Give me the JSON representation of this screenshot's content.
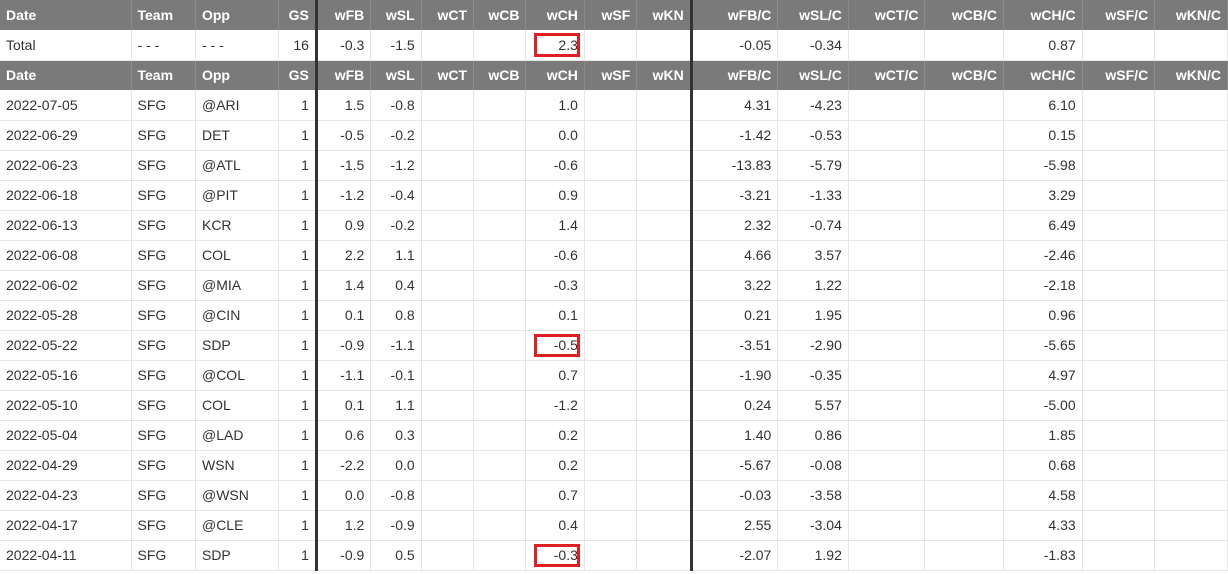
{
  "columns": [
    "Date",
    "Team",
    "Opp",
    "GS",
    "wFB",
    "wSL",
    "wCT",
    "wCB",
    "wCH",
    "wSF",
    "wKN",
    "wFB/C",
    "wSL/C",
    "wCT/C",
    "wCB/C",
    "wCH/C",
    "wSF/C",
    "wKN/C"
  ],
  "total": {
    "label": "Total",
    "team": "- - -",
    "opp": "- - -",
    "gs": "16",
    "wFB": "-0.3",
    "wSL": "-1.5",
    "wCT": "",
    "wCB": "",
    "wCH": "2.3",
    "wSF": "",
    "wKN": "",
    "wFBc": "-0.05",
    "wSLc": "-0.34",
    "wCTc": "",
    "wCBc": "",
    "wCHc": "0.87",
    "wSFc": "",
    "wKNc": ""
  },
  "rows": [
    {
      "date": "2022-07-05",
      "team": "SFG",
      "opp": "@ARI",
      "gs": "1",
      "wFB": "1.5",
      "wSL": "-0.8",
      "wCH": "1.0",
      "wFBc": "4.31",
      "wSLc": "-4.23",
      "wCHc": "6.10"
    },
    {
      "date": "2022-06-29",
      "team": "SFG",
      "opp": "DET",
      "gs": "1",
      "wFB": "-0.5",
      "wSL": "-0.2",
      "wCH": "0.0",
      "wFBc": "-1.42",
      "wSLc": "-0.53",
      "wCHc": "0.15"
    },
    {
      "date": "2022-06-23",
      "team": "SFG",
      "opp": "@ATL",
      "gs": "1",
      "wFB": "-1.5",
      "wSL": "-1.2",
      "wCH": "-0.6",
      "wFBc": "-13.83",
      "wSLc": "-5.79",
      "wCHc": "-5.98"
    },
    {
      "date": "2022-06-18",
      "team": "SFG",
      "opp": "@PIT",
      "gs": "1",
      "wFB": "-1.2",
      "wSL": "-0.4",
      "wCH": "0.9",
      "wFBc": "-3.21",
      "wSLc": "-1.33",
      "wCHc": "3.29"
    },
    {
      "date": "2022-06-13",
      "team": "SFG",
      "opp": "KCR",
      "gs": "1",
      "wFB": "0.9",
      "wSL": "-0.2",
      "wCH": "1.4",
      "wFBc": "2.32",
      "wSLc": "-0.74",
      "wCHc": "6.49"
    },
    {
      "date": "2022-06-08",
      "team": "SFG",
      "opp": "COL",
      "gs": "1",
      "wFB": "2.2",
      "wSL": "1.1",
      "wCH": "-0.6",
      "wFBc": "4.66",
      "wSLc": "3.57",
      "wCHc": "-2.46"
    },
    {
      "date": "2022-06-02",
      "team": "SFG",
      "opp": "@MIA",
      "gs": "1",
      "wFB": "1.4",
      "wSL": "0.4",
      "wCH": "-0.3",
      "wFBc": "3.22",
      "wSLc": "1.22",
      "wCHc": "-2.18"
    },
    {
      "date": "2022-05-28",
      "team": "SFG",
      "opp": "@CIN",
      "gs": "1",
      "wFB": "0.1",
      "wSL": "0.8",
      "wCH": "0.1",
      "wFBc": "0.21",
      "wSLc": "1.95",
      "wCHc": "0.96"
    },
    {
      "date": "2022-05-22",
      "team": "SFG",
      "opp": "SDP",
      "gs": "1",
      "wFB": "-0.9",
      "wSL": "-1.1",
      "wCH": "-0.5",
      "wFBc": "-3.51",
      "wSLc": "-2.90",
      "wCHc": "-5.65",
      "hl": true
    },
    {
      "date": "2022-05-16",
      "team": "SFG",
      "opp": "@COL",
      "gs": "1",
      "wFB": "-1.1",
      "wSL": "-0.1",
      "wCH": "0.7",
      "wFBc": "-1.90",
      "wSLc": "-0.35",
      "wCHc": "4.97"
    },
    {
      "date": "2022-05-10",
      "team": "SFG",
      "opp": "COL",
      "gs": "1",
      "wFB": "0.1",
      "wSL": "1.1",
      "wCH": "-1.2",
      "wFBc": "0.24",
      "wSLc": "5.57",
      "wCHc": "-5.00"
    },
    {
      "date": "2022-05-04",
      "team": "SFG",
      "opp": "@LAD",
      "gs": "1",
      "wFB": "0.6",
      "wSL": "0.3",
      "wCH": "0.2",
      "wFBc": "1.40",
      "wSLc": "0.86",
      "wCHc": "1.85"
    },
    {
      "date": "2022-04-29",
      "team": "SFG",
      "opp": "WSN",
      "gs": "1",
      "wFB": "-2.2",
      "wSL": "0.0",
      "wCH": "0.2",
      "wFBc": "-5.67",
      "wSLc": "-0.08",
      "wCHc": "0.68"
    },
    {
      "date": "2022-04-23",
      "team": "SFG",
      "opp": "@WSN",
      "gs": "1",
      "wFB": "0.0",
      "wSL": "-0.8",
      "wCH": "0.7",
      "wFBc": "-0.03",
      "wSLc": "-3.58",
      "wCHc": "4.58"
    },
    {
      "date": "2022-04-17",
      "team": "SFG",
      "opp": "@CLE",
      "gs": "1",
      "wFB": "1.2",
      "wSL": "-0.9",
      "wCH": "0.4",
      "wFBc": "2.55",
      "wSLc": "-3.04",
      "wCHc": "4.33"
    },
    {
      "date": "2022-04-11",
      "team": "SFG",
      "opp": "SDP",
      "gs": "1",
      "wFB": "-0.9",
      "wSL": "0.5",
      "wCH": "-0.3",
      "wFBc": "-2.07",
      "wSLc": "1.92",
      "wCHc": "-1.83",
      "hl": true
    }
  ],
  "colors": {
    "header_bg": "#7a7a7a",
    "header_text": "#ffffff",
    "highlight": "#e02020",
    "divider": "#333333"
  }
}
